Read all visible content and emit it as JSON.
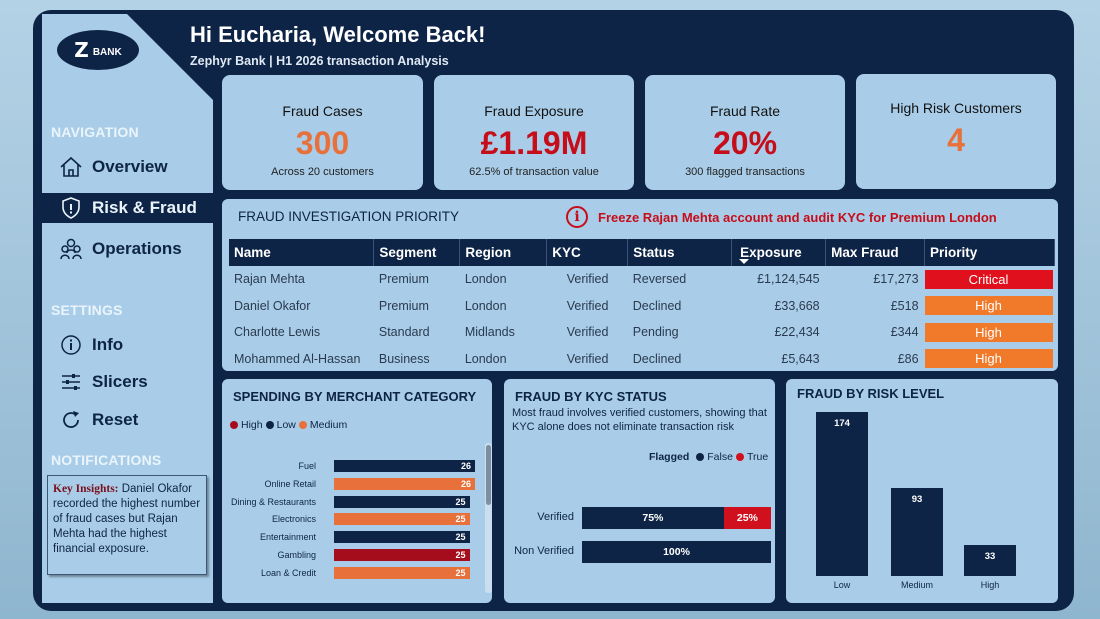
{
  "header": {
    "greeting": "Hi Eucharia, Welcome Back!",
    "subtitle": "Zephyr Bank | H1 2026 transaction Analysis"
  },
  "logo": {
    "mark": "Z",
    "text": "BANK"
  },
  "sidebar": {
    "navigation_heading": "NAVIGATION",
    "nav_items": [
      {
        "label": "Overview",
        "icon": "home-icon",
        "active": false
      },
      {
        "label": "Risk & Fraud",
        "icon": "shield-icon",
        "active": true
      },
      {
        "label": "Operations",
        "icon": "people-icon",
        "active": false
      }
    ],
    "settings_heading": "SETTINGS",
    "settings_items": [
      {
        "label": "Info",
        "icon": "info-icon"
      },
      {
        "label": "Slicers",
        "icon": "sliders-icon"
      },
      {
        "label": "Reset",
        "icon": "reset-icon"
      }
    ],
    "notifications_heading": "NOTIFICATIONS",
    "insight_title": "Key Insights:",
    "insight_text": " Daniel Okafor recorded the highest number of fraud cases but Rajan Mehta had the highest financial exposure."
  },
  "kpis": [
    {
      "title": "Fraud Cases",
      "value": "300",
      "sub": "Across 20 customers",
      "color": "#e8703a"
    },
    {
      "title": "Fraud Exposure",
      "value": "£1.19M",
      "sub": "62.5% of transaction value",
      "color": "#c60d1a"
    },
    {
      "title": "Fraud Rate",
      "value": "20%",
      "sub": "300 flagged transactions",
      "color": "#c60d1a"
    },
    {
      "title": "High Risk Customers",
      "value": "4",
      "sub": "",
      "color": "#e8703a"
    }
  ],
  "priority_table": {
    "title": "FRAUD INVESTIGATION PRIORITY",
    "alert": "Freeze Rajan Mehta account and audit KYC for Premium London",
    "columns": [
      "Name",
      "Segment",
      "Region",
      "KYC",
      "Status",
      "Exposure",
      "Max Fraud",
      "Priority"
    ],
    "rows": [
      {
        "name": "Rajan Mehta",
        "segment": "Premium",
        "region": "London",
        "kyc": "Verified",
        "status": "Reversed",
        "exposure": "£1,124,545",
        "max_fraud": "£17,273",
        "priority": "Critical",
        "priority_color": "#e0101c"
      },
      {
        "name": "Daniel Okafor",
        "segment": "Premium",
        "region": "London",
        "kyc": "Verified",
        "status": "Declined",
        "exposure": "£33,668",
        "max_fraud": "£518",
        "priority": "High",
        "priority_color": "#f07a2a"
      },
      {
        "name": "Charlotte Lewis",
        "segment": "Standard",
        "region": "Midlands",
        "kyc": "Verified",
        "status": "Pending",
        "exposure": "£22,434",
        "max_fraud": "£344",
        "priority": "High",
        "priority_color": "#f07a2a"
      },
      {
        "name": "Mohammed Al-Hassan",
        "segment": "Business",
        "region": "London",
        "kyc": "Verified",
        "status": "Declined",
        "exposure": "£5,643",
        "max_fraud": "£86",
        "priority": "High",
        "priority_color": "#f07a2a"
      }
    ]
  },
  "merchant_panel": {
    "title": "SPENDING BY MERCHANT CATEGORY",
    "legend": [
      {
        "label": "High",
        "color": "#a50d1c"
      },
      {
        "label": "Low",
        "color": "#0e2446"
      },
      {
        "label": "Medium",
        "color": "#e8703a"
      }
    ]
  },
  "kyc_panel": {
    "title": "FRAUD BY KYC STATUS",
    "description": "Most fraud involves verified customers, showing that KYC alone does not eliminate transaction risk",
    "legend_title": "Flagged",
    "legend": [
      {
        "label": "False",
        "color": "#0e2446"
      },
      {
        "label": "True",
        "color": "#d0101c"
      }
    ]
  },
  "risk_panel": {
    "title": "FRAUD BY RISK LEVEL"
  },
  "chart_data": [
    {
      "type": "bar",
      "orientation": "horizontal",
      "title": "SPENDING BY MERCHANT CATEGORY",
      "categories": [
        "Fuel",
        "Online Retail",
        "Dining & Restaurants",
        "Electronics",
        "Entertainment",
        "Gambling",
        "Loan & Credit"
      ],
      "values": [
        26,
        26,
        25,
        25,
        25,
        25,
        25
      ],
      "risk": [
        "Low",
        "Medium",
        "Low",
        "Medium",
        "Low",
        "High",
        "Medium"
      ],
      "colors": [
        "#0e2446",
        "#e8703a",
        "#0e2446",
        "#e8703a",
        "#0e2446",
        "#a50d1c",
        "#e8703a"
      ],
      "xlim": [
        0,
        26
      ]
    },
    {
      "type": "bar",
      "orientation": "horizontal",
      "stacked": true,
      "title": "FRAUD BY KYC STATUS",
      "categories": [
        "Verified",
        "Non Verified"
      ],
      "series": [
        {
          "name": "False",
          "values": [
            75,
            100
          ],
          "labels": [
            "75%",
            "100%"
          ],
          "color": "#0e2446"
        },
        {
          "name": "True",
          "values": [
            25,
            0
          ],
          "labels": [
            "25%",
            ""
          ],
          "color": "#d0101c"
        }
      ],
      "xlim": [
        0,
        100
      ]
    },
    {
      "type": "bar",
      "title": "FRAUD BY RISK LEVEL",
      "categories": [
        "Low",
        "Medium",
        "High"
      ],
      "values": [
        174,
        93,
        33
      ],
      "ylim": [
        0,
        174
      ]
    }
  ]
}
